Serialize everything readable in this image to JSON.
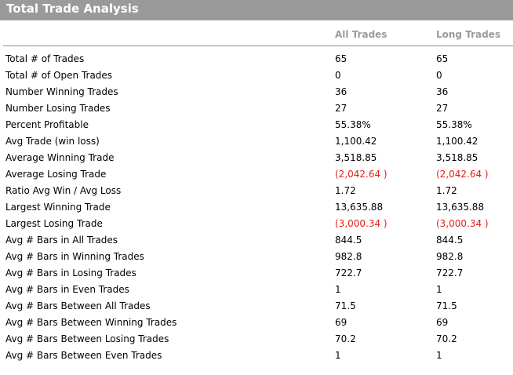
{
  "title": "Total Trade Analysis",
  "columns": {
    "all": "All Trades",
    "long": "Long Trades"
  },
  "colors": {
    "title_bar": "#9a9a9a",
    "negative": "#e0201a"
  },
  "rows": [
    {
      "label": "Total # of Trades",
      "all": "65",
      "long": "65"
    },
    {
      "label": "Total # of Open Trades",
      "all": "0",
      "long": "0"
    },
    {
      "label": "Number Winning Trades",
      "all": "36",
      "long": "36"
    },
    {
      "label": "Number Losing Trades",
      "all": "27",
      "long": "27"
    },
    {
      "label": "Percent Profitable",
      "all": "55.38%",
      "long": "55.38%"
    },
    {
      "label": "Avg Trade (win  loss)",
      "all": "1,100.42",
      "long": "1,100.42"
    },
    {
      "label": "Average Winning Trade",
      "all": "3,518.85",
      "long": "3,518.85"
    },
    {
      "label": "Average Losing Trade",
      "all": "(2,042.64 )",
      "long": "(2,042.64 )",
      "negative": true
    },
    {
      "label": "Ratio Avg Win / Avg Loss",
      "all": "1.72",
      "long": "1.72"
    },
    {
      "label": "Largest Winning Trade",
      "all": "13,635.88",
      "long": "13,635.88"
    },
    {
      "label": "Largest Losing Trade",
      "all": "(3,000.34 )",
      "long": "(3,000.34 )",
      "negative": true
    },
    {
      "label": "Avg # Bars in All Trades",
      "all": "844.5",
      "long": "844.5"
    },
    {
      "label": "Avg # Bars in Winning Trades",
      "all": "982.8",
      "long": "982.8"
    },
    {
      "label": "Avg # Bars in Losing Trades",
      "all": "722.7",
      "long": "722.7"
    },
    {
      "label": "Avg # Bars in Even Trades",
      "all": "1",
      "long": "1"
    },
    {
      "label": "Avg # Bars Between All Trades",
      "all": "71.5",
      "long": "71.5"
    },
    {
      "label": "Avg # Bars Between Winning Trades",
      "all": "69",
      "long": "69"
    },
    {
      "label": "Avg # Bars Between Losing Trades",
      "all": "70.2",
      "long": "70.2"
    },
    {
      "label": "Avg # Bars Between Even Trades",
      "all": "1",
      "long": "1"
    }
  ]
}
